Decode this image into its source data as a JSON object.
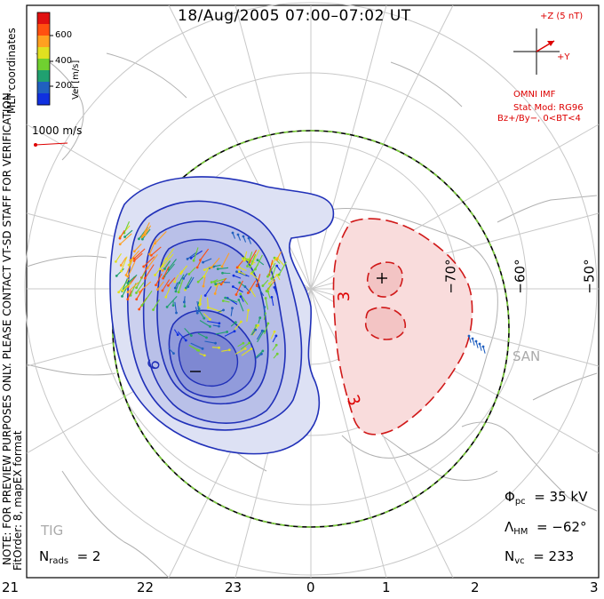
{
  "title": "18/Aug/2005 07:00–07:02 UT",
  "colorbar": {
    "ticks": [
      "600",
      "400",
      "200"
    ],
    "label": "Vel [m/s]",
    "colors": [
      "#e01010",
      "#ff5010",
      "#ffa020",
      "#e0e020",
      "#70d030",
      "#20a070",
      "#2060c0",
      "#1030e0"
    ]
  },
  "mlt_coordinates_label": "MLT coordinates",
  "reference_vector": {
    "label": "1000 m/s",
    "color": "#d00"
  },
  "watermark_line1": "NOTE: FOR PREVIEW PURPOSES ONLY. PLEASE CONTACT VT-SD STAFF FOR VERIFICATION.",
  "watermark_line2": "FitOrder: 8, mapEX format",
  "imf": {
    "z_label": "+Z (5 nT)",
    "y_label": "+Y",
    "source": "OMNI IMF",
    "stat_mod": "Stat Mod: RG96",
    "condition": "Bz+/By−, 0<BT<4"
  },
  "latitude_labels": [
    "−70°",
    "−60°",
    "−50°"
  ],
  "station_labels": [
    "SAN",
    "TIG"
  ],
  "contour_labels": [
    "+",
    "−",
    "3",
    "3",
    "6"
  ],
  "mlt_labels": [
    "21",
    "22",
    "23",
    "0",
    "1",
    "2",
    "3"
  ],
  "stats": {
    "phi_pc": {
      "symbol": "Φ",
      "sub": "pc",
      "value": "= 35 kV"
    },
    "lambda_hm": {
      "symbol": "Λ",
      "sub": "HM",
      "value": "= −62°"
    },
    "n_vc": {
      "symbol": "N",
      "sub": "vc",
      "value": "= 233"
    },
    "n_rads": {
      "symbol": "N",
      "sub": "rads",
      "value": "= 2"
    }
  }
}
